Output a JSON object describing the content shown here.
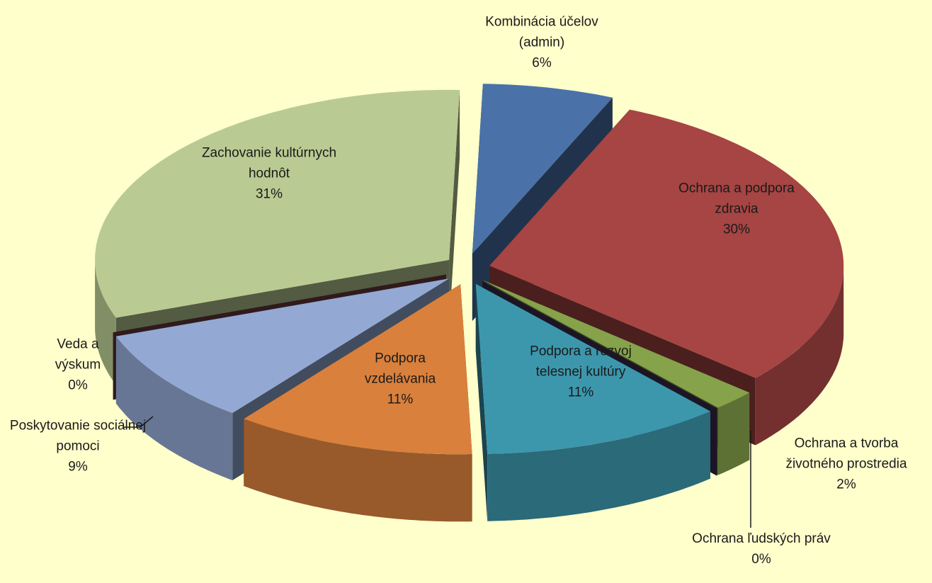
{
  "chart_data": {
    "type": "pie",
    "categories": [
      "Kombinácia účelov (admin)",
      "Ochrana a podpora zdravia",
      "Ochrana a tvorba životného prostredia",
      "Ochrana ľudských práv",
      "Podpora a rozvoj telesnej kultúry",
      "Podpora vzdelávania",
      "Poskytovanie sociálnej pomoci",
      "Veda a výskum",
      "Zachovanie kultúrnych hodnôt"
    ],
    "values": [
      6,
      30,
      2,
      0,
      11,
      11,
      9,
      0,
      31
    ],
    "value_labels": [
      "6%",
      "30%",
      "2%",
      "0%",
      "11%",
      "11%",
      "9%",
      "0%",
      "31%"
    ],
    "colors": [
      "#4a72a8",
      "#a64543",
      "#86a24a",
      "#3f2f52",
      "#3c97ad",
      "#d9803c",
      "#93a9d3",
      "#6b3a3e",
      "#b9cb92"
    ]
  }
}
